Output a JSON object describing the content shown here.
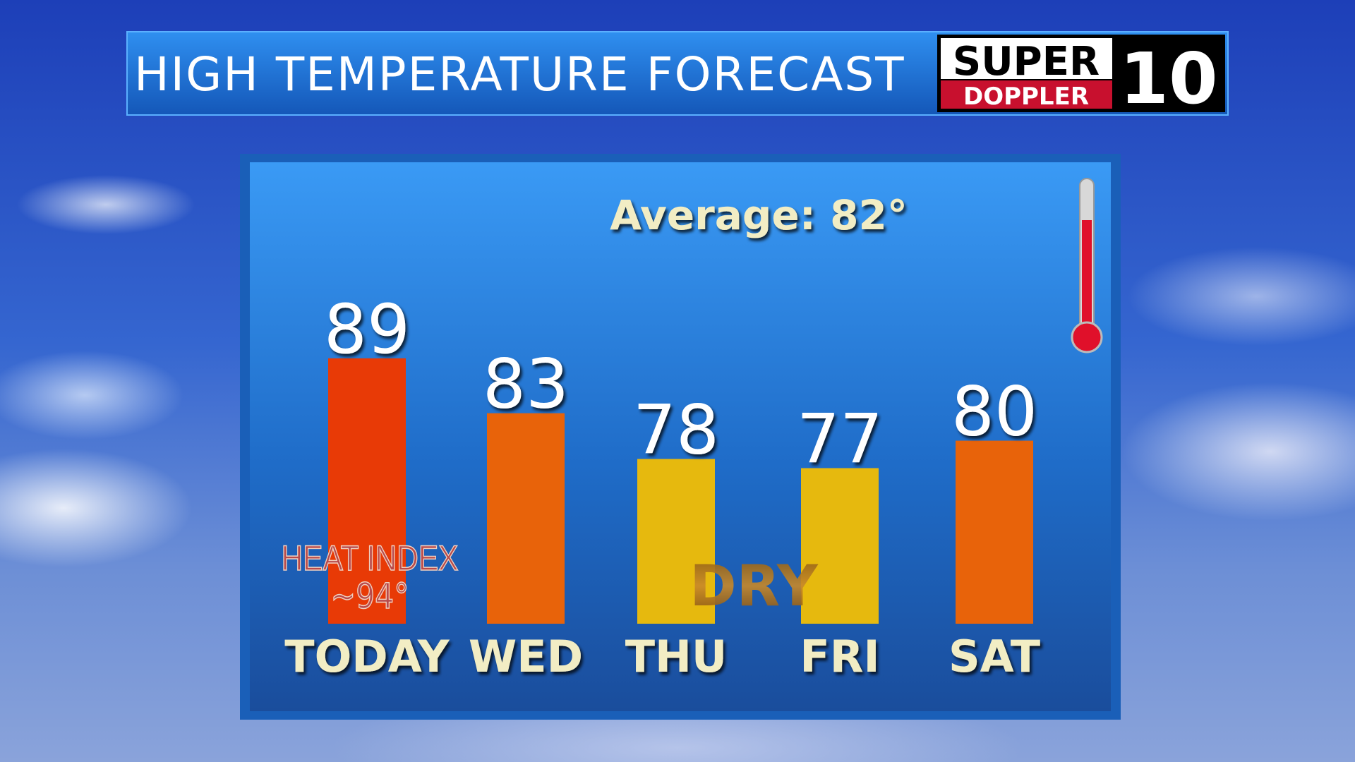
{
  "chart_data": {
    "type": "bar",
    "title": "HIGH TEMPERATURE FORECAST",
    "logo": {
      "line1": "SUPER",
      "line2": "DOPPLER",
      "channel": "10"
    },
    "annotation": "Average: 82°",
    "heat_index": {
      "label": "HEAT INDEX",
      "value": "~94°"
    },
    "note": "DRY",
    "categories": [
      "TODAY",
      "WED",
      "THU",
      "FRI",
      "SAT"
    ],
    "values": [
      89,
      83,
      78,
      77,
      80
    ],
    "colors": [
      "#e83a06",
      "#e8630a",
      "#e6b90e",
      "#e6b90e",
      "#e8630a"
    ],
    "ylim": [
      60,
      95
    ]
  }
}
